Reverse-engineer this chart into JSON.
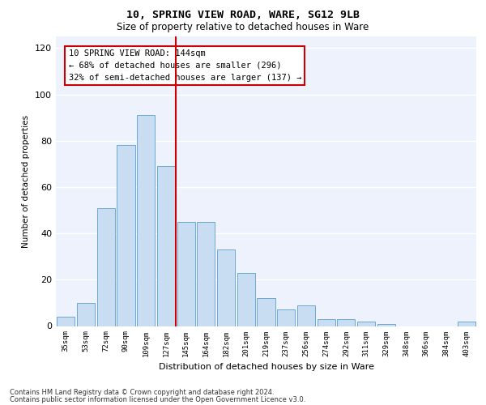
{
  "title1": "10, SPRING VIEW ROAD, WARE, SG12 9LB",
  "title2": "Size of property relative to detached houses in Ware",
  "xlabel": "Distribution of detached houses by size in Ware",
  "ylabel": "Number of detached properties",
  "categories": [
    "35sqm",
    "53sqm",
    "72sqm",
    "90sqm",
    "109sqm",
    "127sqm",
    "145sqm",
    "164sqm",
    "182sqm",
    "201sqm",
    "219sqm",
    "237sqm",
    "256sqm",
    "274sqm",
    "292sqm",
    "311sqm",
    "329sqm",
    "348sqm",
    "366sqm",
    "384sqm",
    "403sqm"
  ],
  "values": [
    4,
    10,
    51,
    78,
    91,
    69,
    45,
    45,
    33,
    23,
    12,
    7,
    9,
    3,
    3,
    2,
    1,
    0,
    0,
    0,
    2
  ],
  "bar_color": "#c9ddf2",
  "bar_edge_color": "#6aaad4",
  "vline_x_index": 6,
  "vline_color": "#cc0000",
  "annotation_lines": [
    "10 SPRING VIEW ROAD: 144sqm",
    "← 68% of detached houses are smaller (296)",
    "32% of semi-detached houses are larger (137) →"
  ],
  "annotation_box_color": "#ffffff",
  "annotation_box_edge": "#cc0000",
  "ylim": [
    0,
    125
  ],
  "yticks": [
    0,
    20,
    40,
    60,
    80,
    100,
    120
  ],
  "background_color": "#eef2fc",
  "grid_color": "#ffffff",
  "footer1": "Contains HM Land Registry data © Crown copyright and database right 2024.",
  "footer2": "Contains public sector information licensed under the Open Government Licence v3.0."
}
